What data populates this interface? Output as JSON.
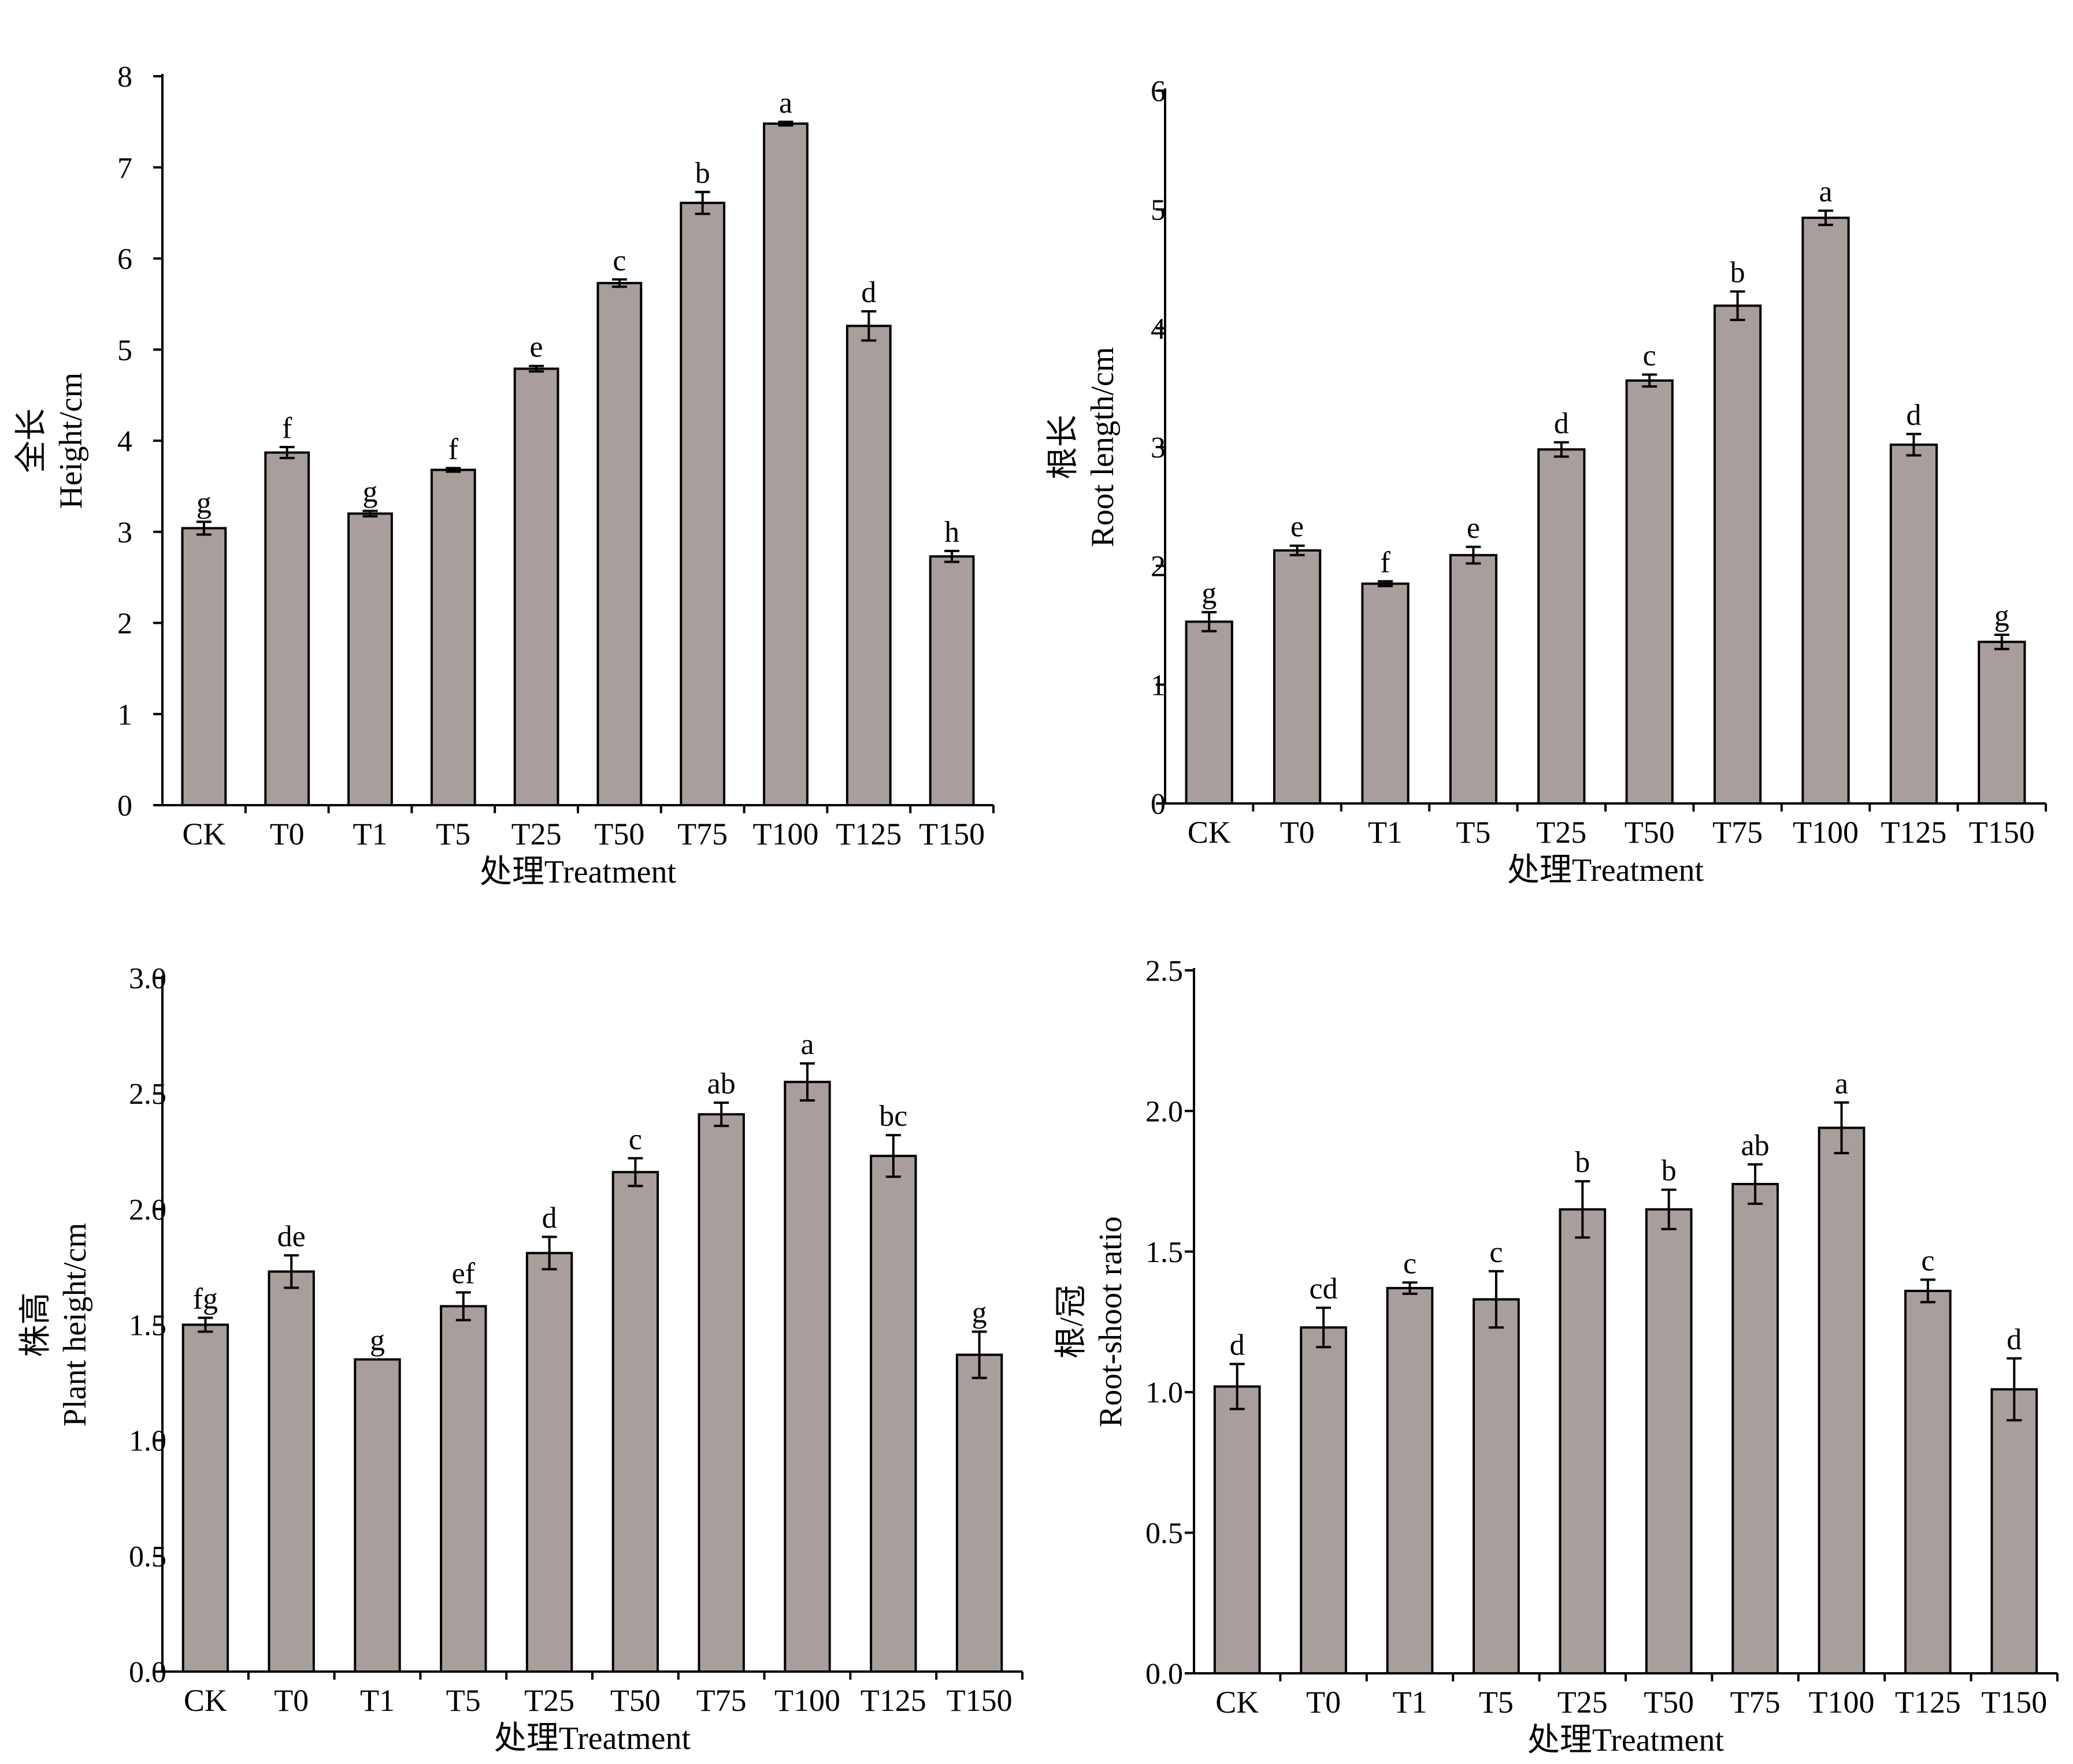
{
  "bar_color": "#a89e9b",
  "edge_color": "#000000",
  "chart_data": [
    {
      "type": "bar",
      "categories": [
        "CK",
        "T0",
        "T1",
        "T5",
        "T25",
        "T50",
        "T75",
        "T100",
        "T125",
        "T150"
      ],
      "values": [
        3.04,
        3.87,
        3.2,
        3.68,
        4.79,
        5.73,
        6.61,
        7.48,
        5.26,
        2.73
      ],
      "errors": [
        0.07,
        0.06,
        0.03,
        0.02,
        0.03,
        0.04,
        0.12,
        0.02,
        0.16,
        0.06
      ],
      "letters": [
        "g",
        "f",
        "g",
        "f",
        "e",
        "c",
        "b",
        "a",
        "d",
        "h"
      ],
      "ylabel_cn": "全长",
      "ylabel_en": "Height/cm",
      "xlabel": "处理Treatment",
      "ylim": [
        0,
        8
      ],
      "yticks": [
        "0",
        "1",
        "2",
        "3",
        "4",
        "5",
        "6",
        "7",
        "8"
      ]
    },
    {
      "type": "bar",
      "categories": [
        "CK",
        "T0",
        "T1",
        "T5",
        "T25",
        "T50",
        "T75",
        "T100",
        "T125",
        "T150"
      ],
      "values": [
        1.53,
        2.13,
        1.85,
        2.09,
        2.98,
        3.56,
        4.19,
        4.93,
        3.02,
        1.36
      ],
      "errors": [
        0.08,
        0.04,
        0.02,
        0.07,
        0.06,
        0.05,
        0.12,
        0.06,
        0.09,
        0.06
      ],
      "letters": [
        "g",
        "e",
        "f",
        "e",
        "d",
        "c",
        "b",
        "a",
        "d",
        "g"
      ],
      "ylabel_cn": "根长",
      "ylabel_en": "Root length/cm",
      "xlabel": "处理Treatment",
      "ylim": [
        0,
        6
      ],
      "yticks": [
        "0",
        "1",
        "2",
        "3",
        "4",
        "5",
        "6"
      ]
    },
    {
      "type": "bar",
      "categories": [
        "CK",
        "T0",
        "T1",
        "T5",
        "T25",
        "T50",
        "T75",
        "T100",
        "T125",
        "T150"
      ],
      "values": [
        1.5,
        1.73,
        1.35,
        1.58,
        1.81,
        2.16,
        2.41,
        2.55,
        2.23,
        1.37
      ],
      "errors": [
        0.03,
        0.07,
        0.0,
        0.06,
        0.07,
        0.06,
        0.05,
        0.08,
        0.09,
        0.1
      ],
      "letters": [
        "fg",
        "de",
        "g",
        "ef",
        "d",
        "c",
        "ab",
        "a",
        "bc",
        "g"
      ],
      "ylabel_cn": "株高",
      "ylabel_en": "Plant height/cm",
      "xlabel": "处理Treatment",
      "ylim": [
        0,
        3
      ],
      "yticks": [
        "0.0",
        "0.5",
        "1.0",
        "1.5",
        "2.0",
        "2.5",
        "3.0"
      ]
    },
    {
      "type": "bar",
      "categories": [
        "CK",
        "T0",
        "T1",
        "T5",
        "T25",
        "T50",
        "T75",
        "T100",
        "T125",
        "T150"
      ],
      "values": [
        1.02,
        1.23,
        1.37,
        1.33,
        1.65,
        1.65,
        1.74,
        1.94,
        1.36,
        1.01
      ],
      "errors": [
        0.08,
        0.07,
        0.02,
        0.1,
        0.1,
        0.07,
        0.07,
        0.09,
        0.04,
        0.11
      ],
      "letters": [
        "d",
        "cd",
        "c",
        "c",
        "b",
        "b",
        "ab",
        "a",
        "c",
        "d"
      ],
      "ylabel_cn": "根/冠",
      "ylabel_en": "Root-shoot ratio",
      "xlabel": "处理Treatment",
      "ylim": [
        0,
        2.5
      ],
      "yticks": [
        "0.0",
        "0.5",
        "1.0",
        "1.5",
        "2.0",
        "2.5"
      ]
    }
  ]
}
